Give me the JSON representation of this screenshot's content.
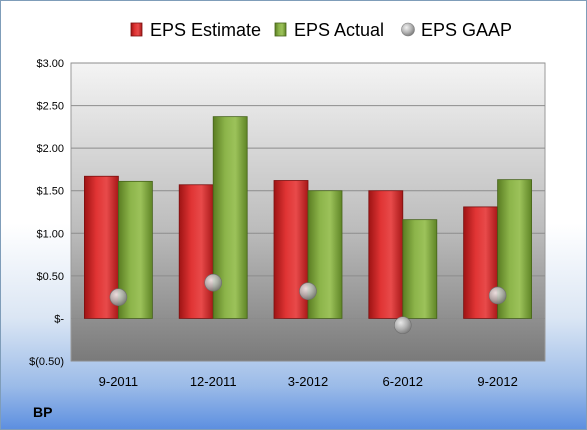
{
  "company": "BP",
  "chart_data": {
    "type": "bar",
    "title": "",
    "xlabel": "",
    "ylabel": "",
    "categories": [
      "9-2011",
      "12-2011",
      "3-2012",
      "6-2012",
      "9-2012"
    ],
    "series": [
      {
        "name": "EPS Estimate",
        "kind": "bar",
        "color": "#d42a2a",
        "values": [
          1.67,
          1.57,
          1.62,
          1.5,
          1.31
        ]
      },
      {
        "name": "EPS Actual",
        "kind": "bar",
        "color": "#7fa43a",
        "values": [
          1.61,
          2.37,
          1.5,
          1.16,
          1.63
        ]
      },
      {
        "name": "EPS GAAP",
        "kind": "scatter",
        "color": "#a9a9a9",
        "values": [
          0.25,
          0.42,
          0.32,
          -0.08,
          0.27
        ]
      }
    ],
    "ylim": [
      -0.5,
      3.0
    ],
    "yticks": [
      3.0,
      2.5,
      2.0,
      1.5,
      1.0,
      0.5,
      0.0,
      -0.5
    ],
    "ytick_labels": [
      "$3.00",
      "$2.50",
      "$2.00",
      "$1.50",
      "$1.00",
      "$0.50",
      "$-",
      "$(0.50)"
    ],
    "grid": true,
    "legend": "top"
  }
}
